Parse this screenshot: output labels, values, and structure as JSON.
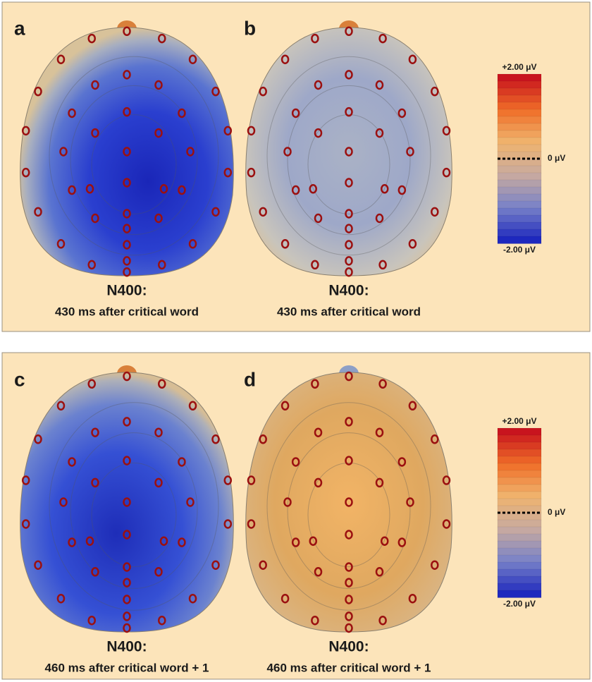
{
  "panels": [
    {
      "label": "a",
      "title": "N400:",
      "caption": "430 ms after critical word"
    },
    {
      "label": "b",
      "title": "N400:",
      "caption": "430 ms after critical word"
    },
    {
      "label": "c",
      "title": "N400:",
      "caption": "460 ms after critical word + 1"
    },
    {
      "label": "d",
      "title": "N400:",
      "caption": "460 ms after critical word + 1"
    }
  ],
  "colorbar": {
    "max_label": "+2.00 μV",
    "zero_label": "0 μV",
    "min_label": "-2.00 μV"
  }
}
